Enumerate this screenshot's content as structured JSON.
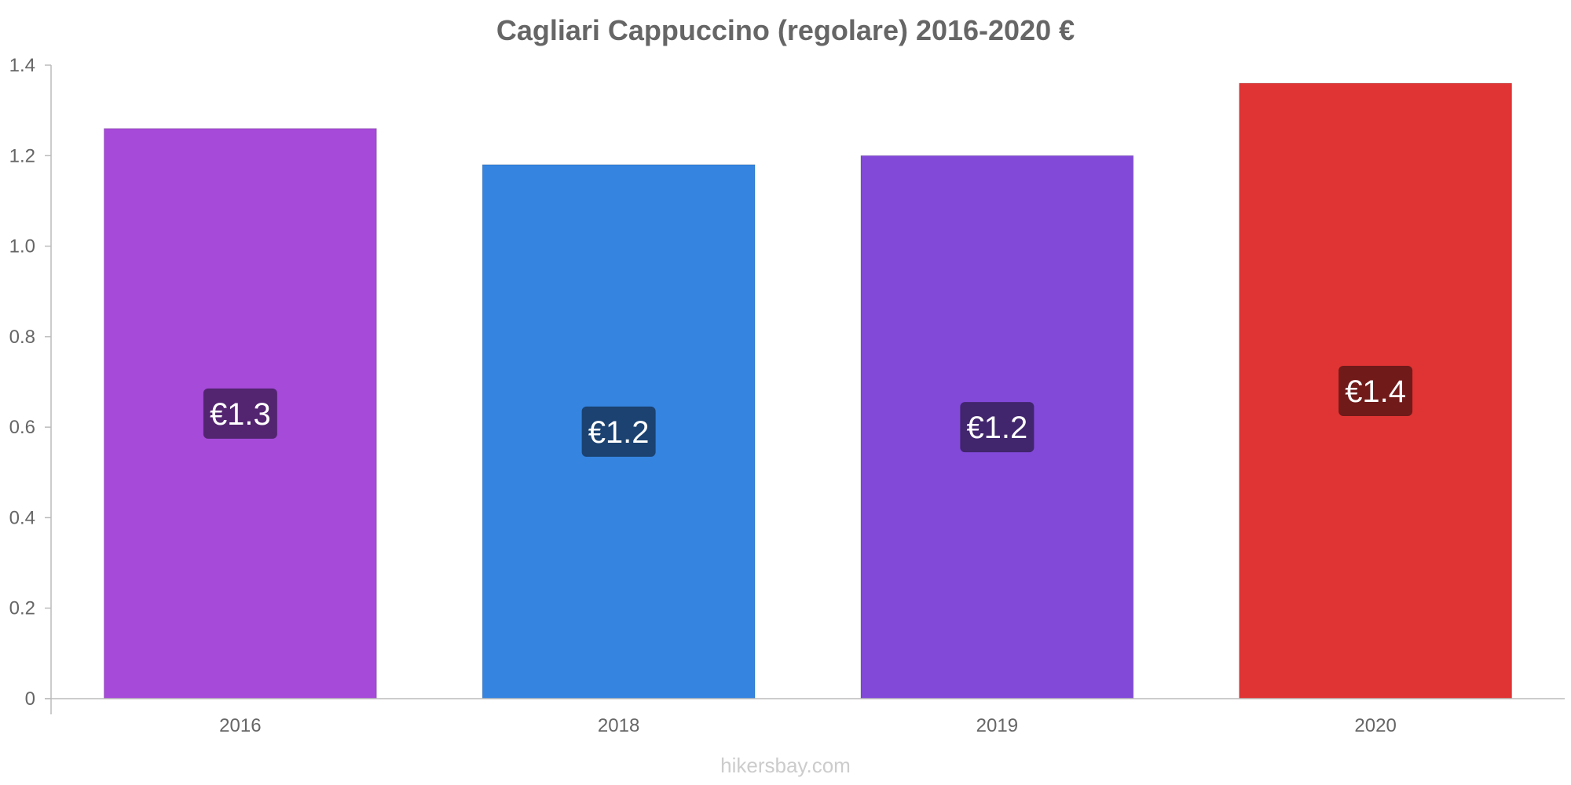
{
  "chart_data": {
    "type": "bar",
    "title": "Cagliari Cappuccino (regolare) 2016-2020 €",
    "xlabel": "",
    "ylabel": "",
    "categories": [
      "2016",
      "2018",
      "2019",
      "2020"
    ],
    "values": [
      1.26,
      1.18,
      1.2,
      1.36
    ],
    "data_labels": [
      "€1.3",
      "€1.2",
      "€1.2",
      "€1.4"
    ],
    "ylim": [
      0,
      1.4
    ],
    "yticks": [
      0,
      0.2,
      0.4,
      0.6,
      0.8,
      1.0,
      1.2,
      1.4
    ],
    "ytick_labels": [
      "0",
      "0.2",
      "0.4",
      "0.6",
      "0.8",
      "1.0",
      "1.2",
      "1.4"
    ],
    "grid": false,
    "bar_colors": [
      "#a64ad9",
      "#3584e0",
      "#8249d9",
      "#e03434"
    ],
    "label_box_colors": [
      "#532570",
      "#1b4270",
      "#41256d",
      "#701a1a"
    ]
  },
  "watermark": "hikersbay.com"
}
